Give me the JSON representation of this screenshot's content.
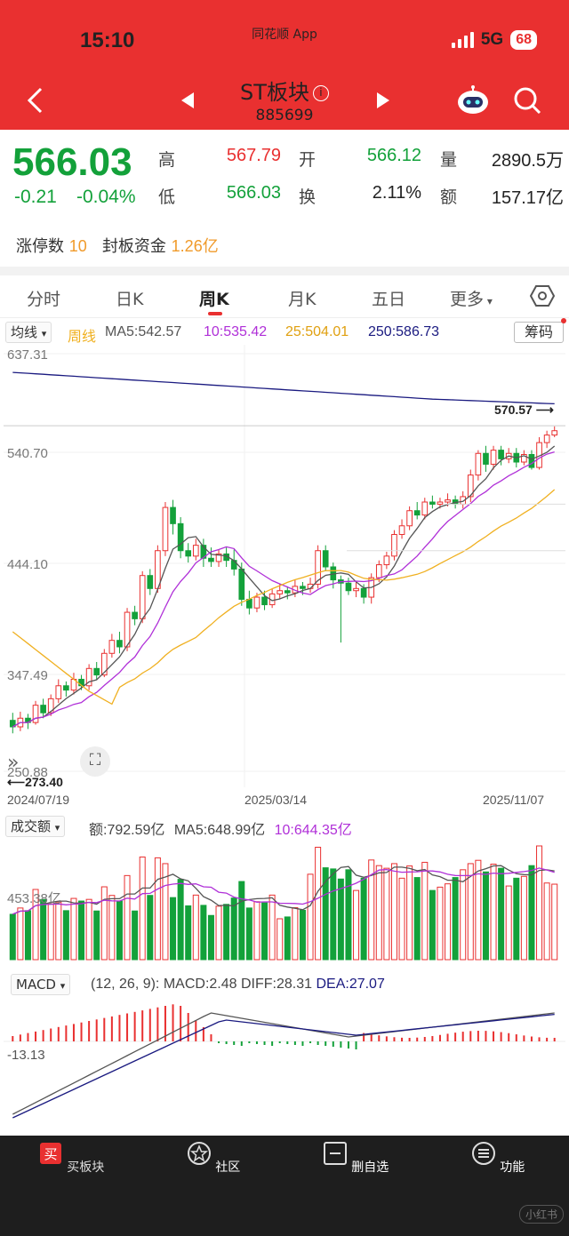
{
  "status": {
    "time": "15:10",
    "app": "同花顺 App",
    "network": "5G",
    "battery": "68"
  },
  "header": {
    "title": "ST板块",
    "code": "885699"
  },
  "quote": {
    "price": "566.03",
    "change": "-0.21",
    "change_pct": "-0.04%",
    "high_label": "高",
    "high": "567.79",
    "open_label": "开",
    "open": "566.12",
    "volume_label": "量",
    "volume": "2890.5万",
    "low_label": "低",
    "low": "566.03",
    "turnover_label": "换",
    "turnover": "2.11%",
    "amount_label": "额",
    "amount": "157.17亿",
    "limit_up_label": "涨停数",
    "limit_up": "10",
    "seal_label": "封板资金",
    "seal": "1.26亿"
  },
  "tabs": [
    "分时",
    "日K",
    "周K",
    "月K",
    "五日",
    "更多"
  ],
  "active_tab": "周K",
  "ma_bar": {
    "dropdown": "均线",
    "period": "周线",
    "ma5": "MA5:542.57",
    "ma10": "10:535.42",
    "ma25": "25:504.01",
    "ma250": "250:586.73",
    "chip_button": "筹码"
  },
  "kline": {
    "y_labels": [
      "637.31",
      "540.70",
      "444.10",
      "347.49",
      "250.88"
    ],
    "last_high_label": "570.57",
    "low_label": "273.40",
    "dates": [
      "2024/07/19",
      "2025/03/14",
      "2025/11/07"
    ]
  },
  "volume_bar": {
    "dropdown": "成交额",
    "amount": "额:792.59亿",
    "ma5": "MA5:648.99亿",
    "ma10": "10:644.35亿",
    "y_label": "453.38亿"
  },
  "macd_bar": {
    "dropdown": "MACD",
    "params": "(12, 26, 9):",
    "macd": "MACD:2.48",
    "diff": "DIFF:28.31",
    "dea": "DEA:27.07",
    "y_label": "-13.13"
  },
  "nav": [
    {
      "label": "买板块",
      "icon": "buy-icon"
    },
    {
      "label": "社区",
      "icon": "community-icon"
    },
    {
      "label": "删自选",
      "icon": "remove-watch-icon"
    },
    {
      "label": "功能",
      "icon": "more-icon"
    }
  ],
  "watermark": "小红书",
  "colors": {
    "header": "#e93030",
    "up": "#e93030",
    "down": "#13a13a",
    "ma5": "#555555",
    "ma10": "#b030d8",
    "ma25": "#f0b020",
    "ma250": "#1a1a80"
  },
  "chart_data": {
    "type": "candlestick",
    "weeks_from": "2024/07/19",
    "weeks_to": "2025/11/07",
    "candles": [
      [
        298,
        292,
        305,
        286
      ],
      [
        292,
        300,
        306,
        288
      ],
      [
        300,
        296,
        304,
        290
      ],
      [
        296,
        312,
        316,
        294
      ],
      [
        312,
        305,
        318,
        300
      ],
      [
        305,
        318,
        322,
        302
      ],
      [
        318,
        330,
        336,
        314
      ],
      [
        330,
        326,
        334,
        320
      ],
      [
        326,
        336,
        342,
        322
      ],
      [
        336,
        330,
        340,
        326
      ],
      [
        330,
        346,
        350,
        326
      ],
      [
        346,
        340,
        352,
        336
      ],
      [
        340,
        360,
        364,
        338
      ],
      [
        360,
        372,
        378,
        356
      ],
      [
        372,
        366,
        380,
        360
      ],
      [
        366,
        398,
        402,
        362
      ],
      [
        398,
        392,
        404,
        386
      ],
      [
        392,
        432,
        436,
        388
      ],
      [
        432,
        420,
        438,
        414
      ],
      [
        420,
        455,
        460,
        416
      ],
      [
        455,
        495,
        500,
        450
      ],
      [
        495,
        480,
        502,
        470
      ],
      [
        480,
        455,
        486,
        448
      ],
      [
        455,
        450,
        462,
        444
      ],
      [
        450,
        460,
        466,
        446
      ],
      [
        460,
        448,
        466,
        440
      ],
      [
        448,
        445,
        458,
        440
      ],
      [
        445,
        452,
        456,
        440
      ],
      [
        452,
        446,
        458,
        440
      ],
      [
        446,
        438,
        456,
        432
      ],
      [
        438,
        410,
        444,
        404
      ],
      [
        410,
        402,
        418,
        396
      ],
      [
        402,
        412,
        416,
        398
      ],
      [
        412,
        405,
        418,
        400
      ],
      [
        405,
        415,
        420,
        402
      ],
      [
        415,
        418,
        424,
        410
      ],
      [
        418,
        416,
        422,
        410
      ],
      [
        416,
        422,
        428,
        412
      ],
      [
        422,
        420,
        426,
        414
      ],
      [
        420,
        424,
        430,
        416
      ],
      [
        424,
        455,
        460,
        420
      ],
      [
        455,
        440,
        460,
        436
      ],
      [
        440,
        428,
        444,
        420
      ],
      [
        428,
        425,
        432,
        370
      ],
      [
        425,
        418,
        430,
        414
      ],
      [
        418,
        420,
        426,
        412
      ],
      [
        420,
        412,
        424,
        406
      ],
      [
        412,
        430,
        434,
        406
      ],
      [
        430,
        442,
        446,
        426
      ],
      [
        442,
        450,
        454,
        438
      ],
      [
        450,
        470,
        474,
        446
      ],
      [
        470,
        478,
        484,
        466
      ],
      [
        478,
        492,
        496,
        474
      ],
      [
        492,
        488,
        500,
        484
      ],
      [
        488,
        500,
        504,
        484
      ],
      [
        500,
        498,
        506,
        494
      ],
      [
        498,
        500,
        504,
        494
      ],
      [
        500,
        502,
        508,
        496
      ],
      [
        502,
        498,
        506,
        494
      ],
      [
        498,
        505,
        510,
        494
      ],
      [
        505,
        525,
        530,
        500
      ],
      [
        525,
        545,
        548,
        520
      ],
      [
        545,
        535,
        552,
        528
      ],
      [
        535,
        548,
        552,
        530
      ],
      [
        548,
        540,
        552,
        534
      ],
      [
        540,
        545,
        550,
        536
      ],
      [
        545,
        537,
        550,
        532
      ],
      [
        537,
        544,
        548,
        534
      ],
      [
        544,
        532,
        548,
        530
      ],
      [
        532,
        555,
        560,
        530
      ],
      [
        555,
        562,
        566,
        550
      ],
      [
        562,
        566,
        570,
        560
      ]
    ],
    "series": [
      {
        "name": "MA5",
        "value": 542.57
      },
      {
        "name": "10",
        "value": 535.42
      },
      {
        "name": "25",
        "value": 504.01
      },
      {
        "name": "250",
        "value": 586.73
      }
    ],
    "ylim": [
      250.88,
      637.31
    ]
  }
}
